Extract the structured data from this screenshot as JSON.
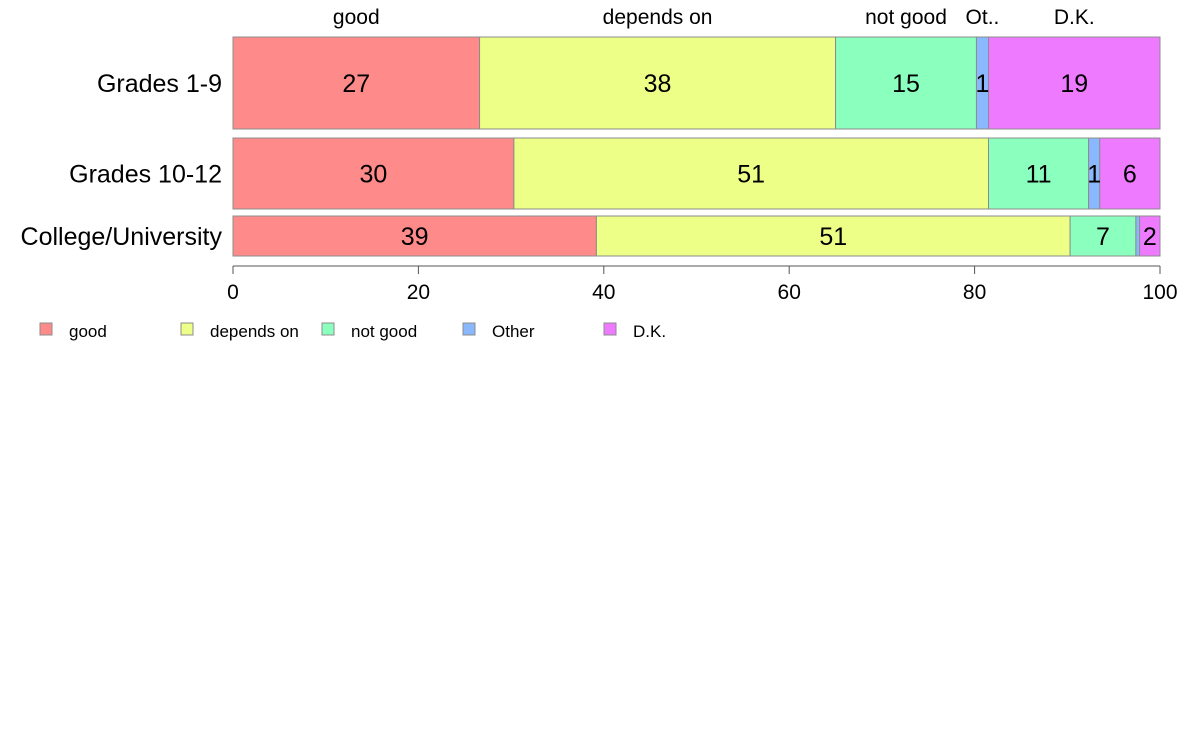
{
  "chart_data": {
    "type": "bar",
    "orientation": "horizontal",
    "stacked": true,
    "categories": [
      "Grades 1-9",
      "Grades 10-12",
      "College/University"
    ],
    "series": [
      {
        "name": "good",
        "color": "#ff8a8a",
        "values": [
          26.6,
          30.3,
          39.2
        ]
      },
      {
        "name": "depends on",
        "color": "#eeff88",
        "values": [
          38.4,
          51.2,
          51.1
        ]
      },
      {
        "name": "not good",
        "color": "#8affbe",
        "values": [
          15.2,
          10.8,
          7.1
        ]
      },
      {
        "name": "Other",
        "color": "#8ab8ff",
        "values": [
          1.3,
          1.2,
          0.4
        ]
      },
      {
        "name": "D.K.",
        "color": "#ee7aff",
        "values": [
          18.5,
          6.5,
          2.2
        ]
      }
    ],
    "data_labels": [
      [
        "27",
        "38",
        "15",
        "1",
        "19"
      ],
      [
        "30",
        "51",
        "11",
        "1",
        "6"
      ],
      [
        "39",
        "51",
        "7",
        "",
        "2"
      ]
    ],
    "top_labels": [
      "good",
      "depends on",
      "not good",
      "Ot..",
      "D.K."
    ],
    "xlim": [
      0,
      100
    ],
    "xticks": [
      0,
      20,
      40,
      60,
      80,
      100
    ],
    "grid": false,
    "legend": {
      "position": "bottom-left",
      "entries": [
        "good",
        "depends on",
        "not good",
        "Other",
        "D.K."
      ]
    },
    "title": "",
    "xlabel": "",
    "ylabel": ""
  }
}
